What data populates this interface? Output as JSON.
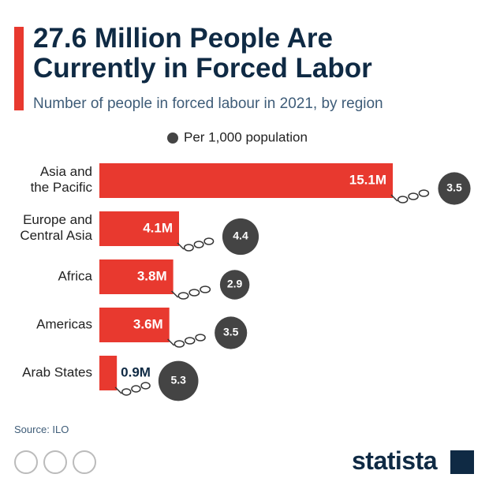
{
  "chart_data": {
    "type": "bar",
    "orientation": "horizontal",
    "title": "27.6 Million People Are Currently in Forced Labor",
    "subtitle": "Number of people in forced labour in 2021, by region",
    "categories": [
      "Asia and the Pacific",
      "Europe and Central Asia",
      "Africa",
      "Americas",
      "Arab States"
    ],
    "values": [
      15.1,
      4.1,
      3.8,
      3.6,
      0.9
    ],
    "value_labels": [
      "15.1M",
      "4.1M",
      "3.8M",
      "3.6M",
      "0.9M"
    ],
    "color": "#e8392f",
    "bubbles": {
      "name": "Per 1,000 population",
      "color": "#444444",
      "values": [
        3.5,
        4.4,
        2.9,
        3.5,
        5.3
      ]
    },
    "source": "Source: ILO",
    "brand": "statista"
  }
}
